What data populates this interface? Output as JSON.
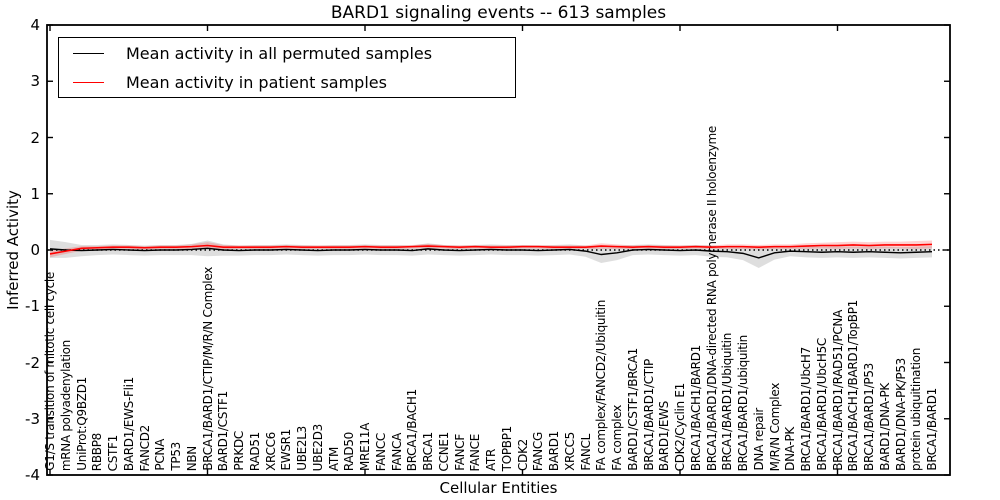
{
  "figure": {
    "title": "BARD1 signaling events -- 613 samples",
    "xlabel": "Cellular Entities",
    "ylabel": "Inferred Activity",
    "legend": [
      {
        "label": "Mean activity in all permuted samples",
        "color": "#000000"
      },
      {
        "label": "Mean activity in patient samples",
        "color": "#ff0000"
      }
    ]
  },
  "chart_data": {
    "type": "line",
    "title": "BARD1 signaling events -- 613 samples",
    "xlabel": "Cellular Entities",
    "ylabel": "Inferred Activity",
    "ylim": [
      -4,
      4
    ],
    "yticks": [
      4,
      3,
      2,
      1,
      0,
      -1,
      -2,
      -3,
      -4
    ],
    "xtick_every": 10,
    "grid": false,
    "legend_position": "upper left",
    "zero_line": {
      "y": 0,
      "style": "dotted",
      "color": "#000000"
    },
    "categories": [
      "G1/S transition of mitotic cell cycle",
      "mRNA polyadenylation",
      "UniProt:Q9BZD1",
      "RBBP8",
      "CSTF1",
      "BARD1/EWS-Fli1",
      "FANCD2",
      "PCNA",
      "TP53",
      "NBN",
      "BRCA1/BARD1/CTIP/M/R/N Complex",
      "BARD1/CSTF1",
      "PRKDC",
      "RAD51",
      "XRCC6",
      "EWSR1",
      "UBE2L3",
      "UBE2D3",
      "ATM",
      "RAD50",
      "MRE11A",
      "FANCC",
      "FANCA",
      "BRCA1/BACH1",
      "BRCA1",
      "CCNE1",
      "FANCF",
      "FANCE",
      "ATR",
      "TOPBP1",
      "CDK2",
      "FANCG",
      "BARD1",
      "XRCC5",
      "FANCL",
      "FA complex/FANCD2/Ubiquitin",
      "FA complex",
      "BARD1/CSTF1/BRCA1",
      "BRCA1/BARD1/CTIP",
      "BARD1/EWS",
      "CDK2/Cyclin E1",
      "BRCA1/BACH1/BARD1",
      "BRCA1/BARD1/DNA-directed RNA polymerase II holoenzyme",
      "BRCA1/BARD1/Ubiquitin",
      "BRCA1/BARD1/ubiquitin",
      "DNA repair",
      "M/R/N Complex",
      "DNA-PK",
      "BRCA1/BARD1/UbcH7",
      "BRCA1/BARD1/UbcH5C",
      "BRCA1/BARD1/RAD51/PCNA",
      "BRCA1/BACH1/BARD1/TopBP1",
      "BRCA1/BARD1/P53",
      "BARD1/DNA-PK",
      "BARD1/DNA-PK/P53",
      "protein ubiquitination",
      "BRCA1/BARD1"
    ],
    "series": [
      {
        "name": "Mean activity in all permuted samples",
        "color": "#000000",
        "band_color": "rgba(0,0,0,0.13)",
        "values": [
          0.02,
          0,
          -0.01,
          0,
          0.01,
          0,
          -0.01,
          0,
          0,
          0.01,
          0.03,
          0,
          -0.01,
          0,
          0,
          0.01,
          0,
          -0.01,
          0,
          0,
          0.01,
          0,
          0,
          -0.01,
          0.02,
          0,
          -0.01,
          0,
          0.01,
          0,
          0,
          -0.01,
          0,
          0.01,
          -0.02,
          -0.08,
          -0.05,
          0,
          0.01,
          0,
          -0.01,
          0,
          -0.02,
          -0.03,
          -0.06,
          -0.14,
          -0.05,
          -0.02,
          -0.03,
          -0.04,
          -0.03,
          -0.04,
          -0.03,
          -0.04,
          -0.05,
          -0.04,
          -0.03
        ],
        "band_halfwidth": [
          0.16,
          0.14,
          0.1,
          0.09,
          0.09,
          0.09,
          0.09,
          0.09,
          0.09,
          0.1,
          0.14,
          0.1,
          0.09,
          0.09,
          0.09,
          0.09,
          0.09,
          0.09,
          0.09,
          0.09,
          0.09,
          0.09,
          0.09,
          0.09,
          0.1,
          0.09,
          0.09,
          0.09,
          0.09,
          0.09,
          0.09,
          0.09,
          0.09,
          0.09,
          0.1,
          0.15,
          0.13,
          0.09,
          0.09,
          0.09,
          0.09,
          0.09,
          0.1,
          0.1,
          0.12,
          0.18,
          0.12,
          0.09,
          0.1,
          0.1,
          0.1,
          0.1,
          0.1,
          0.1,
          0.1,
          0.1,
          0.1
        ]
      },
      {
        "name": "Mean activity in patient samples",
        "color": "#ff0000",
        "band_color": "rgba(255,0,0,0.18)",
        "values": [
          -0.07,
          -0.02,
          0.03,
          0.04,
          0.05,
          0.05,
          0.04,
          0.05,
          0.05,
          0.06,
          0.08,
          0.05,
          0.05,
          0.05,
          0.05,
          0.06,
          0.05,
          0.05,
          0.05,
          0.05,
          0.06,
          0.05,
          0.05,
          0.06,
          0.07,
          0.06,
          0.05,
          0.06,
          0.05,
          0.05,
          0.06,
          0.06,
          0.05,
          0.05,
          0.05,
          0.07,
          0.06,
          0.05,
          0.06,
          0.05,
          0.05,
          0.06,
          0.05,
          0.06,
          0.06,
          0.05,
          0.06,
          0.06,
          0.07,
          0.08,
          0.08,
          0.09,
          0.08,
          0.09,
          0.09,
          0.09,
          0.1
        ],
        "band_halfwidth": [
          0.06,
          0.05,
          0.04,
          0.03,
          0.03,
          0.03,
          0.03,
          0.03,
          0.03,
          0.04,
          0.06,
          0.04,
          0.03,
          0.03,
          0.03,
          0.03,
          0.03,
          0.03,
          0.03,
          0.03,
          0.03,
          0.03,
          0.03,
          0.03,
          0.04,
          0.03,
          0.03,
          0.03,
          0.03,
          0.03,
          0.03,
          0.03,
          0.03,
          0.03,
          0.03,
          0.05,
          0.04,
          0.03,
          0.03,
          0.03,
          0.03,
          0.03,
          0.03,
          0.04,
          0.04,
          0.04,
          0.04,
          0.04,
          0.05,
          0.05,
          0.06,
          0.06,
          0.06,
          0.06,
          0.06,
          0.07,
          0.07
        ]
      }
    ]
  }
}
